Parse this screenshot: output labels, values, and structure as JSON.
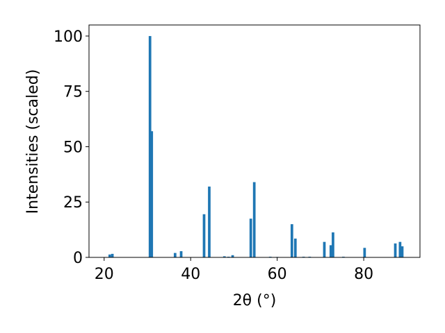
{
  "chart_data": {
    "type": "bar",
    "xlabel": "2θ (°)",
    "ylabel": "Intensities (scaled)",
    "x": [
      21.3,
      21.9,
      30.6,
      31.0,
      36.4,
      37.8,
      43.1,
      44.3,
      47.8,
      48.75,
      49.7,
      53.9,
      54.7,
      58.4,
      60.0,
      63.4,
      64.2,
      66.1,
      67.5,
      70.9,
      72.4,
      72.9,
      75.3,
      80.2,
      87.3,
      88.4,
      88.9
    ],
    "values": [
      1.3,
      1.6,
      100,
      57,
      2,
      2.8,
      19.5,
      32,
      0.5,
      0.3,
      1,
      17.5,
      34,
      0.3,
      0.2,
      15,
      8.5,
      0.3,
      0.3,
      7,
      5.5,
      11.3,
      0.3,
      4.3,
      6.3,
      7,
      5
    ],
    "color": "#1f77b4",
    "xlim": [
      16.5,
      93
    ],
    "ylim": [
      0,
      105
    ],
    "xticks": [
      20,
      40,
      60,
      80
    ],
    "yticks": [
      0,
      25,
      50,
      75,
      100
    ],
    "grid": false
  }
}
